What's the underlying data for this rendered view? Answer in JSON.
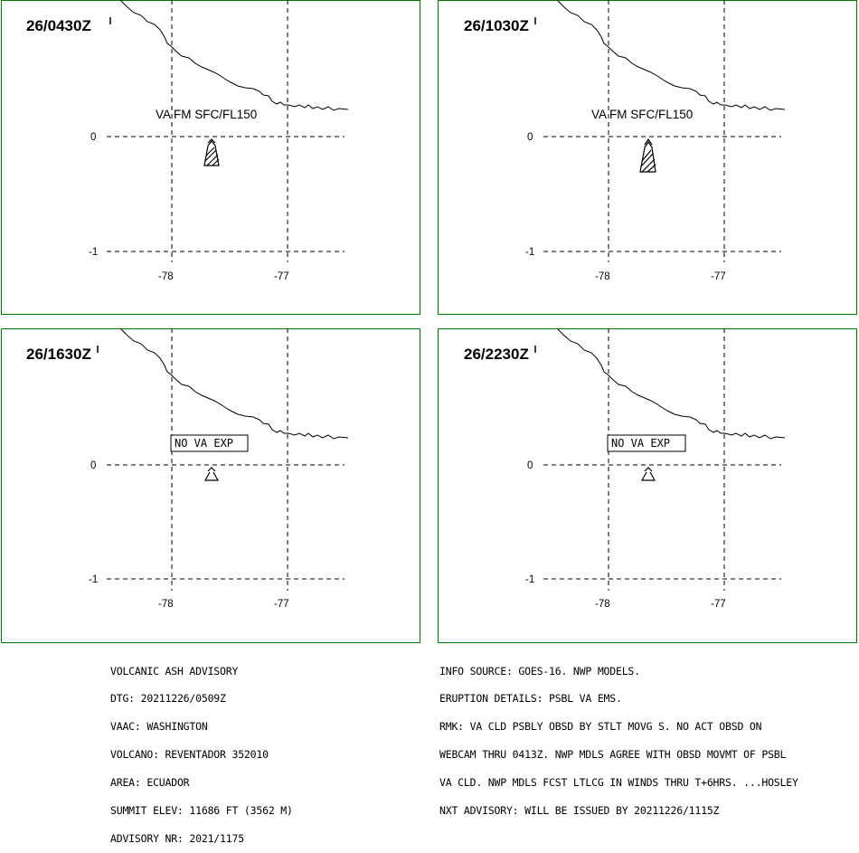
{
  "panels": [
    {
      "time": "26/0430Z",
      "label": "VA FM SFC/FL150",
      "label_type": "text",
      "volcano": "hatched"
    },
    {
      "time": "26/1030Z",
      "label": "VA FM SFC/FL150",
      "label_type": "text",
      "volcano": "hatched"
    },
    {
      "time": "26/1630Z",
      "label": "NO VA EXP",
      "label_type": "box",
      "volcano": "outline"
    },
    {
      "time": "26/2230Z",
      "label": "NO VA EXP",
      "label_type": "box",
      "volcano": "outline"
    }
  ],
  "axes": {
    "lat_labels": [
      "0",
      "-1"
    ],
    "lon_labels": [
      "-78",
      "-77"
    ]
  },
  "advisory_left": [
    "VOLCANIC ASH ADVISORY",
    "DTG: 20211226/0509Z",
    "VAAC: WASHINGTON",
    "VOLCANO: REVENTADOR 352010",
    "AREA: ECUADOR",
    "SUMMIT ELEV: 11686 FT (3562 M)",
    "ADVISORY NR: 2021/1175"
  ],
  "advisory_right": [
    "INFO SOURCE: GOES-16. NWP MODELS.",
    "ERUPTION DETAILS: PSBL VA EMS.",
    "RMK: VA CLD PSBLY OBSD BY STLT MOVG S. NO ACT OBSD ON",
    "WEBCAM THRU 0413Z. NWP MDLS AGREE WITH OBSD MOVMT OF PSBL",
    "VA CLD. NWP MDLS FCST LTLCG IN WINDS THRU T+6HRS. ...HOSLEY",
    "NXT ADVISORY: WILL BE ISSUED BY 20211226/1115Z"
  ],
  "colors": {
    "frame": "#007a00",
    "ink": "#000000"
  }
}
